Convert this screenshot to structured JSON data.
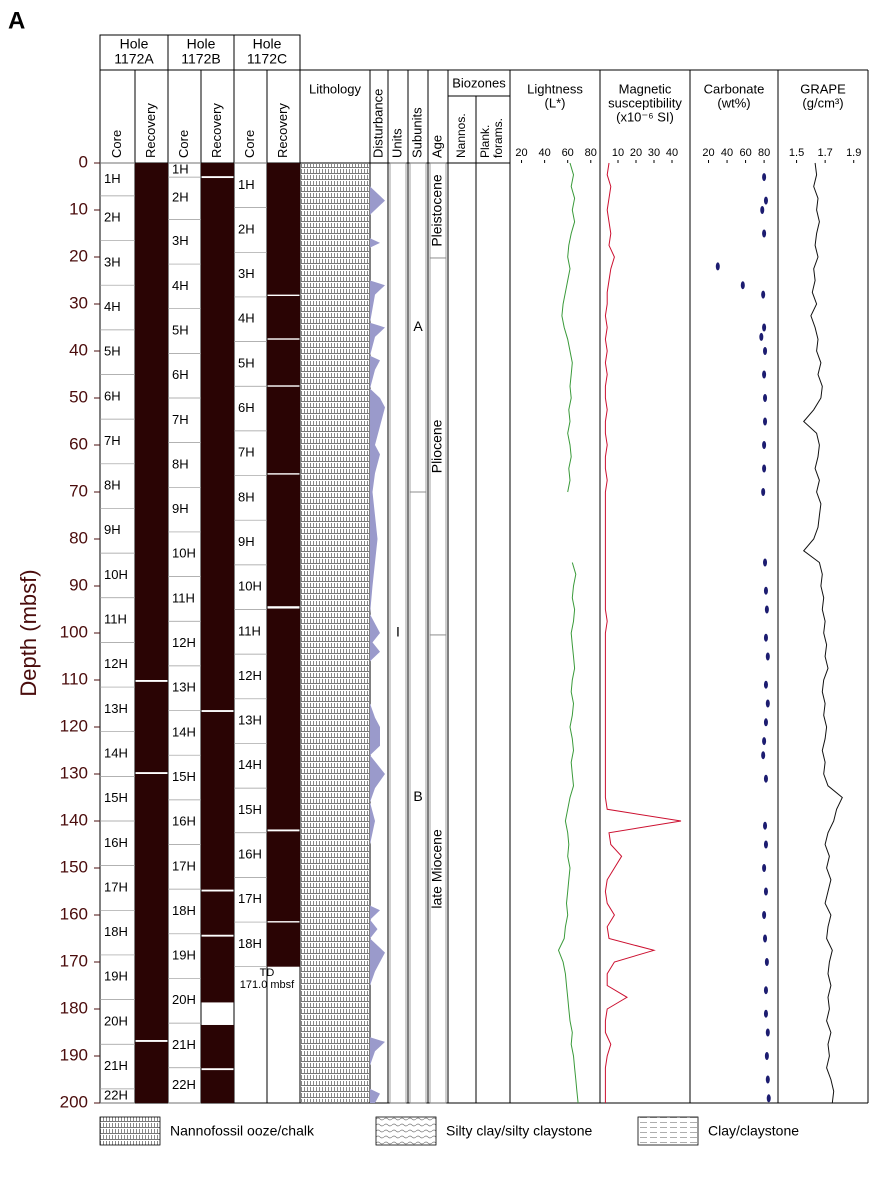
{
  "panel_label": "A",
  "depth_axis": {
    "label": "Depth (mbsf)",
    "ylim": [
      0,
      200
    ],
    "yticks": [
      0,
      10,
      20,
      30,
      40,
      50,
      60,
      70,
      80,
      90,
      100,
      110,
      120,
      130,
      140,
      150,
      160,
      170,
      180,
      190,
      200
    ]
  },
  "holes": [
    {
      "title": [
        "Hole",
        "1172A"
      ],
      "columns": [
        "Core",
        "Recovery"
      ],
      "bottom": 200,
      "cores": {
        "names": [
          "1H",
          "2H",
          "3H",
          "4H",
          "5H",
          "6H",
          "7H",
          "8H",
          "9H",
          "10H",
          "11H",
          "12H",
          "13H",
          "14H",
          "15H",
          "16H",
          "17H",
          "18H",
          "19H",
          "20H",
          "21H",
          "22H"
        ],
        "tops": [
          0,
          7,
          16.5,
          26,
          35.5,
          45,
          54.5,
          64,
          73.5,
          83,
          92.5,
          102,
          111.5,
          121,
          130.5,
          140,
          149.5,
          159,
          168.5,
          178,
          187.5,
          197
        ]
      },
      "recovery": [
        [
          0,
          110
        ],
        [
          110.4,
          129.6
        ],
        [
          130,
          186.6
        ],
        [
          187,
          200
        ]
      ]
    },
    {
      "title": [
        "Hole",
        "1172B"
      ],
      "columns": [
        "Core",
        "Recovery"
      ],
      "bottom": 200,
      "cores": {
        "names": [
          "1H",
          "2H",
          "3H",
          "4H",
          "5H",
          "6H",
          "7H",
          "8H",
          "9H",
          "10H",
          "11H",
          "12H",
          "13H",
          "14H",
          "15H",
          "16H",
          "17H",
          "18H",
          "19H",
          "20H",
          "21H",
          "22H"
        ],
        "tops": [
          0,
          3,
          12,
          21.5,
          31,
          40.5,
          50,
          59.5,
          69,
          78.5,
          88,
          97.5,
          107,
          116.5,
          126,
          135.5,
          145,
          154.5,
          164,
          173.5,
          183,
          192.5
        ]
      },
      "recovery": [
        [
          0,
          2.8
        ],
        [
          3.2,
          116.4
        ],
        [
          116.8,
          154.6
        ],
        [
          155,
          164.2
        ],
        [
          164.6,
          178.6
        ],
        [
          183.4,
          192.6
        ],
        [
          193,
          200
        ]
      ]
    },
    {
      "title": [
        "Hole",
        "1172C"
      ],
      "columns": [
        "Core",
        "Recovery"
      ],
      "bottom": 171,
      "cores": {
        "names": [
          "1H",
          "2H",
          "3H",
          "4H",
          "5H",
          "6H",
          "7H",
          "8H",
          "9H",
          "10H",
          "11H",
          "12H",
          "13H",
          "14H",
          "15H",
          "16H",
          "17H",
          "18H"
        ],
        "tops": [
          0,
          9.5,
          19,
          28.5,
          38,
          47.5,
          57,
          66.5,
          76,
          85.5,
          95,
          104.5,
          114,
          123.5,
          133,
          142.5,
          152,
          161.5
        ]
      },
      "recovery": [
        [
          0,
          28
        ],
        [
          28.3,
          37.3
        ],
        [
          37.6,
          47.3
        ],
        [
          47.6,
          66
        ],
        [
          66.3,
          94.3
        ],
        [
          94.8,
          141.8
        ],
        [
          142.2,
          161.3
        ],
        [
          161.6,
          171
        ]
      ]
    }
  ],
  "td": [
    "TD",
    "171.0 mbsf"
  ],
  "lithology": {
    "title": "Lithology"
  },
  "disturbance": {
    "title": "Disturbance",
    "color": "#9a9acb",
    "x": [
      0,
      5,
      8,
      11,
      16,
      17,
      18,
      25,
      26,
      28,
      34,
      35,
      37,
      41,
      42,
      44,
      48,
      50,
      52,
      56,
      60,
      62,
      66,
      70,
      75,
      80,
      85,
      90,
      96,
      100,
      102,
      104,
      106,
      115,
      118,
      120,
      124,
      126,
      130,
      133,
      136,
      140,
      145,
      158,
      159,
      161,
      163,
      165,
      168,
      170,
      172,
      175,
      186,
      187,
      189,
      192,
      197,
      198,
      200
    ],
    "values": [
      0,
      0,
      3,
      0,
      0,
      2,
      0,
      0,
      3,
      1,
      0,
      3,
      1,
      0,
      2,
      1,
      0,
      2,
      3,
      2,
      1,
      2,
      1,
      0.5,
      1,
      1.5,
      1,
      0.5,
      0,
      2,
      0.5,
      2,
      0,
      0,
      1,
      2,
      2,
      0,
      3,
      1,
      0,
      1,
      0,
      0,
      2,
      0,
      1.5,
      0,
      3,
      2,
      1,
      0,
      0,
      3,
      1,
      0,
      0,
      2,
      1
    ]
  },
  "units": {
    "title": "Units",
    "intervals": [
      {
        "label": "I",
        "top": 0,
        "bottom": 200
      }
    ]
  },
  "subunits": {
    "title": "Subunits",
    "intervals": [
      {
        "label": "A",
        "top": 0,
        "bottom": 70
      },
      {
        "label": "B",
        "top": 70,
        "bottom": 200
      }
    ]
  },
  "age": {
    "title": "Age",
    "intervals": [
      {
        "label": "Pleistocene",
        "top": 0,
        "bottom": 20.2
      },
      {
        "label": "Pliocene",
        "top": 20.2,
        "bottom": 100.4
      },
      {
        "label": "late Miocene",
        "top": 100.4,
        "bottom": 200
      }
    ]
  },
  "biozones": {
    "title": "Biozones",
    "columns": [
      [
        "Nannos."
      ],
      [
        "Plank.",
        "forams."
      ]
    ]
  },
  "logs": {
    "depth": [
      0,
      2.5,
      5,
      7.5,
      10,
      12.5,
      15,
      17.5,
      20,
      22.5,
      25,
      27.5,
      30,
      32.5,
      35,
      37.5,
      40,
      42.5,
      45,
      47.5,
      50,
      52.5,
      55,
      57.5,
      60,
      62.5,
      65,
      67.5,
      70,
      72.5,
      75,
      77.5,
      80,
      82.5,
      85,
      87.5,
      90,
      92.5,
      95,
      97.5,
      100,
      102.5,
      105,
      107.5,
      110,
      112.5,
      115,
      117.5,
      120,
      122.5,
      125,
      127.5,
      130,
      132.5,
      135,
      137.5,
      140,
      142.5,
      145,
      147.5,
      150,
      152.5,
      155,
      157.5,
      160,
      162.5,
      165,
      167.5,
      170,
      172.5,
      175,
      177.5,
      180,
      182.5,
      185,
      187.5,
      190,
      192.5,
      195,
      197.5,
      200
    ],
    "series": [
      {
        "title": [
          "Lightness",
          "(L*)"
        ],
        "xlim": [
          10,
          88
        ],
        "xticks": [
          20,
          40,
          60,
          80
        ],
        "color": "#3a9a3a",
        "values": [
          62,
          65,
          63,
          66,
          64,
          66,
          63,
          61,
          60,
          62,
          60,
          58,
          56,
          55,
          57,
          60,
          62,
          64,
          63,
          62,
          63,
          61,
          62,
          60,
          62,
          63,
          61,
          62,
          60,
          null,
          null,
          null,
          null,
          null,
          64,
          67,
          65,
          64,
          66,
          65,
          63,
          64,
          65,
          66,
          64,
          63,
          65,
          64,
          62,
          64,
          65,
          63,
          64,
          65,
          62,
          60,
          58,
          60,
          61,
          60,
          62,
          61,
          60,
          59,
          60,
          58,
          57,
          52,
          56,
          58,
          59,
          60,
          61,
          62,
          64,
          63,
          65,
          66,
          67,
          68,
          69
        ]
      },
      {
        "title": [
          "Magnetic",
          "susceptibility",
          "(x10⁻⁶ SI)"
        ],
        "xlim": [
          0,
          50
        ],
        "xticks": [
          10,
          20,
          30,
          40
        ],
        "color": "#cc1030",
        "values": [
          5,
          4,
          6,
          5,
          4,
          5,
          6,
          5,
          8,
          6,
          5,
          4,
          4,
          3,
          4,
          3,
          4,
          3,
          4,
          3,
          3,
          4,
          3,
          3,
          4,
          3,
          3,
          4,
          3,
          3,
          3,
          3,
          3,
          3,
          3,
          3,
          3,
          3,
          3,
          4,
          3,
          3,
          3,
          3,
          3,
          3,
          3,
          3,
          3,
          3,
          3,
          3,
          3,
          3,
          3,
          4,
          45,
          5,
          6,
          12,
          8,
          4,
          3,
          4,
          8,
          4,
          5,
          30,
          8,
          4,
          4,
          15,
          4,
          3,
          3,
          6,
          4,
          3,
          3,
          3,
          3
        ]
      },
      {
        "skip_carbonate": false,
        "title": [
          "GRAPE",
          "(g/cm³)"
        ],
        "xlim": [
          1.37,
          2.0
        ],
        "xticks": [
          1.5,
          1.7,
          1.9
        ],
        "color": "#111111",
        "values": [
          1.63,
          1.64,
          1.62,
          1.65,
          1.64,
          1.66,
          1.64,
          1.63,
          1.65,
          1.62,
          1.63,
          1.61,
          1.64,
          1.6,
          1.63,
          1.65,
          1.64,
          1.67,
          1.65,
          1.68,
          1.67,
          1.62,
          1.55,
          1.64,
          1.66,
          1.65,
          1.63,
          1.66,
          1.64,
          1.67,
          1.66,
          1.65,
          1.62,
          1.55,
          1.66,
          1.68,
          1.67,
          1.69,
          1.68,
          1.7,
          1.69,
          1.71,
          1.7,
          1.72,
          1.69,
          1.68,
          1.7,
          1.69,
          1.71,
          1.7,
          1.68,
          1.7,
          1.69,
          1.72,
          1.82,
          1.78,
          1.76,
          1.72,
          1.7,
          1.73,
          1.71,
          1.74,
          1.72,
          1.7,
          1.74,
          1.72,
          1.71,
          1.75,
          1.73,
          1.72,
          1.74,
          1.72,
          1.73,
          1.71,
          1.74,
          1.72,
          1.73,
          1.71,
          1.74,
          1.76,
          1.75
        ]
      }
    ]
  },
  "carbonate": {
    "title": [
      "Carbonate",
      "(wt%)"
    ],
    "xlim": [
      0,
      95
    ],
    "xticks": [
      20,
      40,
      60,
      80
    ],
    "color": "#1c1c70",
    "depth": [
      3,
      8,
      10,
      15,
      22,
      26,
      28,
      35,
      37,
      40,
      45,
      50,
      55,
      60,
      65,
      70,
      85,
      91,
      95,
      101,
      105,
      111,
      115,
      119,
      123,
      126,
      131,
      141,
      145,
      150,
      155,
      160,
      165,
      170,
      176,
      181,
      185,
      190,
      195,
      199
    ],
    "values": [
      80,
      82,
      78,
      80,
      30,
      57,
      79,
      80,
      77,
      81,
      80,
      81,
      81,
      80,
      80,
      79,
      81,
      82,
      83,
      82,
      84,
      82,
      84,
      82,
      80,
      79,
      82,
      81,
      82,
      80,
      82,
      80,
      81,
      83,
      82,
      82,
      84,
      83,
      84,
      85
    ]
  },
  "legend": [
    "Nannofossil ooze/chalk",
    "Silty clay/silty claystone",
    "Clay/claystone"
  ]
}
